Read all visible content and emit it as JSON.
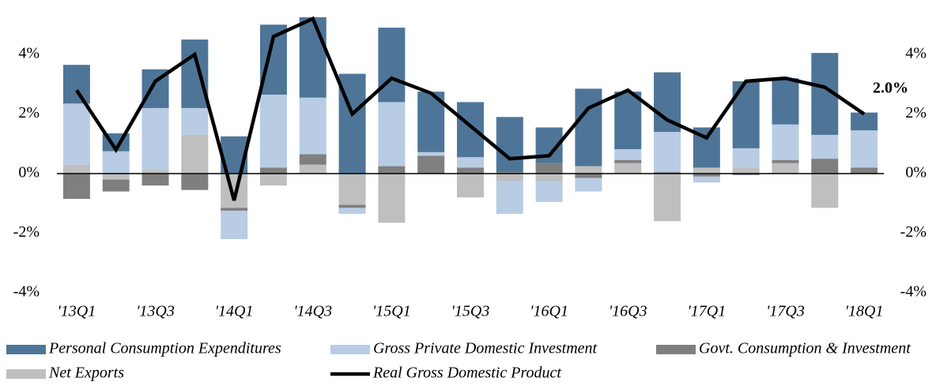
{
  "chart_data": {
    "type": "bar",
    "categories": [
      "'13Q1",
      null,
      "'13Q3",
      null,
      "'14Q1",
      null,
      "'14Q3",
      null,
      "'15Q1",
      null,
      "'15Q3",
      null,
      "'16Q1",
      null,
      "'16Q3",
      null,
      "'17Q1",
      null,
      "'17Q3",
      null,
      "'18Q1"
    ],
    "series": [
      {
        "name": "Net Exports",
        "color": "#bfbfbf",
        "values": [
          0.3,
          -0.2,
          0.15,
          1.3,
          -1.15,
          -0.4,
          0.3,
          -1.05,
          -1.65,
          0,
          -0.8,
          -0.25,
          -0.25,
          0.25,
          0.35,
          -1.6,
          0.2,
          0.2,
          0.35,
          -1.15,
          0
        ]
      },
      {
        "name": "Govt. Consumption & Investment",
        "color": "#7f7f7f",
        "values": [
          -0.85,
          -0.4,
          -0.4,
          -0.55,
          -0.1,
          0.2,
          0.35,
          -0.1,
          0.25,
          0.6,
          0.2,
          0.05,
          0.35,
          -0.15,
          0.1,
          0.05,
          -0.1,
          -0.05,
          0.1,
          0.5,
          0.2
        ]
      },
      {
        "name": "Gross Private Domestic Investment",
        "color": "#b8cce4",
        "values": [
          2.05,
          0.75,
          2.05,
          0.9,
          -0.95,
          2.45,
          1.9,
          -0.2,
          2.15,
          0.12,
          0.35,
          -1.1,
          -0.7,
          -0.45,
          0.37,
          1.35,
          -0.2,
          0.65,
          1.2,
          0.8,
          1.25
        ]
      },
      {
        "name": "Personal Consumption Expenditures",
        "color": "#4e7598",
        "values": [
          1.3,
          0.6,
          1.3,
          2.3,
          1.25,
          2.35,
          2.7,
          3.35,
          2.5,
          2.03,
          1.85,
          1.85,
          1.2,
          2.6,
          1.93,
          2.0,
          1.35,
          2.25,
          1.55,
          2.75,
          0.6
        ]
      },
      {
        "name": "Real Gross Domestic Product",
        "color": "#000000",
        "type": "line",
        "values": [
          2.8,
          0.8,
          3.1,
          4.0,
          -0.9,
          4.6,
          5.2,
          2.0,
          3.2,
          2.7,
          1.6,
          0.5,
          0.6,
          2.2,
          2.8,
          1.8,
          1.2,
          3.1,
          3.2,
          2.9,
          2.0
        ]
      }
    ],
    "legend_order": [
      3,
      2,
      1,
      0,
      4
    ],
    "annotation": "2.0%",
    "ylim": [
      -4,
      5.5
    ],
    "yticks": [
      {
        "value": -4,
        "label": "-4%"
      },
      {
        "value": -2,
        "label": "-2%"
      },
      {
        "value": 0,
        "label": "0%"
      },
      {
        "value": 2,
        "label": "2%"
      },
      {
        "value": 4,
        "label": "4%"
      }
    ],
    "y2lim": [
      -4,
      5.5
    ],
    "y2ticks": [
      {
        "value": -4,
        "label": "-4%"
      },
      {
        "value": -2,
        "label": "-2%"
      },
      {
        "value": 0,
        "label": "0%"
      },
      {
        "value": 2,
        "label": "2%"
      },
      {
        "value": 4,
        "label": "4%"
      }
    ],
    "grid": false
  }
}
